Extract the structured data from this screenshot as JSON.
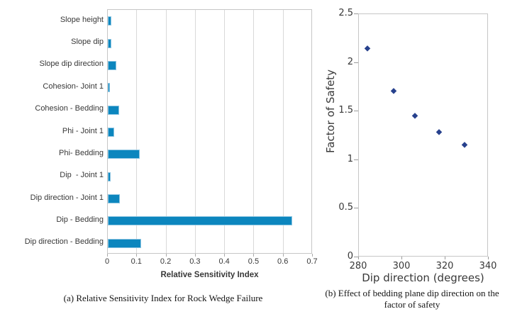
{
  "colors": {
    "bar_fill": "#0c86be",
    "bar_edge": "#8fc6e2",
    "marker_fill": "#27418d",
    "gridline": "#d9d9d9",
    "plot_border": "#c6c6c6",
    "tick": "#9a9a9a",
    "axis_text": "#383838",
    "caption_text": "#141414"
  },
  "chart_data": [
    {
      "type": "bar",
      "orientation": "horizontal",
      "categories": [
        "Slope height",
        "Slope dip",
        "Slope dip direction",
        "Cohesion- Joint 1",
        "Cohesion - Bedding",
        "Phi - Joint 1",
        "Phi- Bedding",
        "Dip  - Joint 1",
        "Dip direction - Joint 1",
        "Dip - Bedding",
        "Dip direction - Bedding"
      ],
      "values": [
        0.011,
        0.011,
        0.028,
        0.008,
        0.039,
        0.023,
        0.11,
        0.01,
        0.042,
        0.63,
        0.115
      ],
      "xlabel": "Relative Sensitivity Index",
      "xlim": [
        0,
        0.7
      ],
      "xticks": [
        0,
        0.1,
        0.2,
        0.3,
        0.4,
        0.5,
        0.6,
        0.7
      ],
      "xtick_labels": [
        "0",
        "0.1",
        "0.2",
        "0.3",
        "0.4",
        "0.5",
        "0.6",
        "0.7"
      ],
      "grid": "vertical",
      "legend": "none",
      "caption": "(a) Relative Sensitivity Index for Rock Wedge Failure"
    },
    {
      "type": "scatter",
      "x": [
        284,
        296,
        306,
        317,
        329
      ],
      "y": [
        2.15,
        1.71,
        1.46,
        1.29,
        1.16
      ],
      "marker": "diamond",
      "xlabel": "Dip direction (degrees)",
      "ylabel": "Factor of Safety",
      "xlim": [
        280,
        340
      ],
      "ylim": [
        0,
        2.5
      ],
      "xticks": [
        280,
        300,
        320,
        340
      ],
      "xtick_labels": [
        "280",
        "300",
        "320",
        "340"
      ],
      "yticks": [
        0,
        0.5,
        1,
        1.5,
        2,
        2.5
      ],
      "ytick_labels": [
        "0",
        "0.5",
        "1",
        "1.5",
        "2",
        "2.5"
      ],
      "grid": "off",
      "legend": "none",
      "caption": "(b) Effect of bedding plane dip direction on the factor of safety"
    }
  ]
}
